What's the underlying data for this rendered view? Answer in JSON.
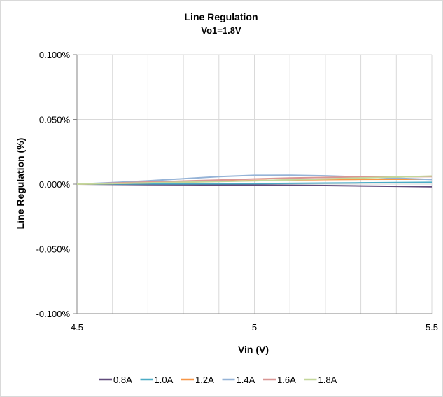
{
  "chart_data": {
    "type": "line",
    "title": "Line Regulation",
    "subtitle": "Vo1=1.8V",
    "xlabel": "Vin (V)",
    "ylabel": "Line Regulation (%)",
    "xlim": [
      4.5,
      5.5
    ],
    "ylim": [
      -0.1,
      0.1
    ],
    "x_ticks": [
      4.5,
      5,
      5.5
    ],
    "x_tick_labels": [
      "4.5",
      "5",
      "5.5"
    ],
    "y_ticks": [
      -0.1,
      -0.05,
      0,
      0.05,
      0.1
    ],
    "y_tick_labels": [
      "-0.100%",
      "-0.050%",
      "0.000%",
      "0.050%",
      "0.100%"
    ],
    "grid": true,
    "legend_position": "bottom",
    "x": [
      4.5,
      4.6,
      4.7,
      4.8,
      4.9,
      5.0,
      5.1,
      5.2,
      5.3,
      5.4,
      5.5
    ],
    "series": [
      {
        "name": "0.8A",
        "color": "#604a7b",
        "values": [
          0,
          -0.0002,
          -0.0004,
          -0.0005,
          -0.0006,
          -0.0007,
          -0.0009,
          -0.0011,
          -0.0014,
          -0.0017,
          -0.002
        ]
      },
      {
        "name": "1.0A",
        "color": "#4bacc6",
        "values": [
          0,
          0.0001,
          0.0002,
          0.0002,
          0.0003,
          0.0004,
          0.0006,
          0.0008,
          0.001,
          0.0012,
          0.0014
        ]
      },
      {
        "name": "1.2A",
        "color": "#f79646",
        "values": [
          0,
          0.0005,
          0.001,
          0.0016,
          0.0022,
          0.0028,
          0.0032,
          0.0035,
          0.0037,
          0.0038,
          0.0038
        ]
      },
      {
        "name": "1.4A",
        "color": "#95b3d7",
        "values": [
          0,
          0.0012,
          0.0026,
          0.0042,
          0.0058,
          0.0068,
          0.0069,
          0.0064,
          0.0056,
          0.0046,
          0.0036
        ]
      },
      {
        "name": "1.6A",
        "color": "#d99694",
        "values": [
          0,
          0.0008,
          0.0016,
          0.0024,
          0.0032,
          0.004,
          0.0047,
          0.0052,
          0.0055,
          0.0057,
          0.0058
        ]
      },
      {
        "name": "1.8A",
        "color": "#c4d79b",
        "values": [
          0,
          0.0005,
          0.001,
          0.0015,
          0.002,
          0.0026,
          0.0033,
          0.004,
          0.0048,
          0.0055,
          0.0062
        ]
      }
    ]
  }
}
